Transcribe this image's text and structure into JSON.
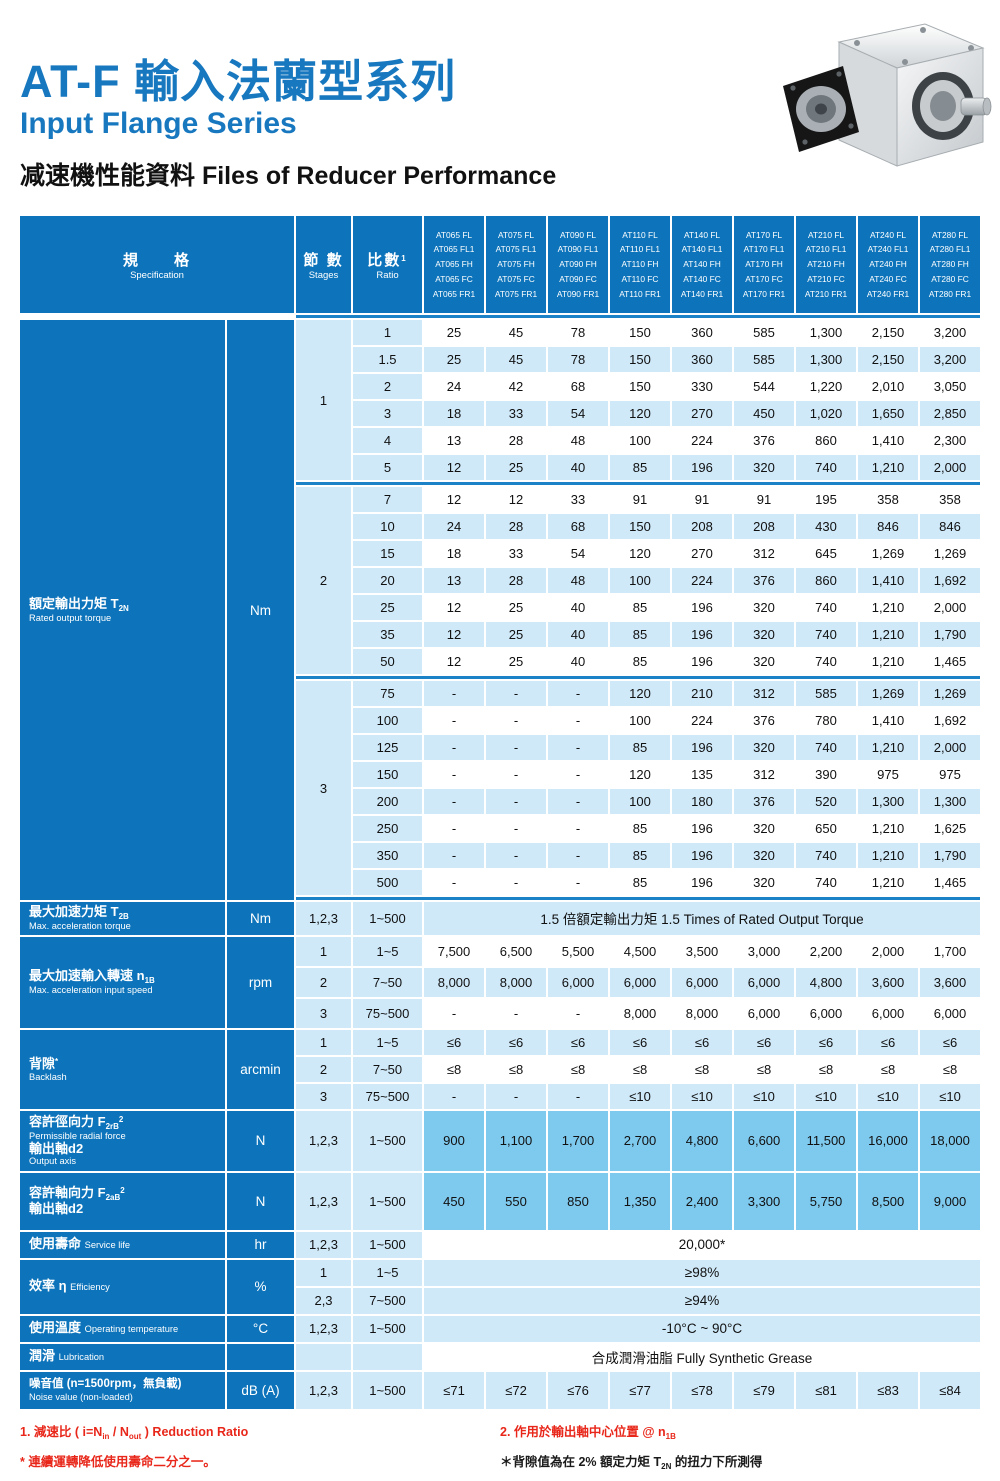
{
  "header": {
    "title_zh": "AT-F 輸入法蘭型系列",
    "title_en": "Input Flange Series",
    "subtitle": "减速機性能資料 Files of Reducer Performance",
    "product_illustration": "right-angle-gear-reducer"
  },
  "colors": {
    "header_blue": "#0d74bb",
    "light_blue": "#cfe9f9",
    "sky_blue": "#7ec9ee",
    "separator_blue": "#1b82c8",
    "title_blue": "#1878bf",
    "footnote_red": "#e8271a"
  },
  "table": {
    "head": {
      "spec": [
        {
          "t": "規　　格"
        },
        {
          "t": "Specification",
          "small": true
        }
      ],
      "stages": [
        {
          "t": "節 數"
        },
        {
          "t": "Stages",
          "small": true
        }
      ],
      "ratio": [
        {
          "t": "比數",
          "sup": "1"
        },
        {
          "t": "Ratio",
          "small": true
        }
      ],
      "models": [
        [
          "AT065 FL",
          "AT065 FL1",
          "AT065 FH",
          "AT065 FC",
          "AT065 FR1"
        ],
        [
          "AT075 FL",
          "AT075 FL1",
          "AT075 FH",
          "AT075 FC",
          "AT075 FR1"
        ],
        [
          "AT090 FL",
          "AT090 FL1",
          "AT090 FH",
          "AT090 FC",
          "AT090 FR1"
        ],
        [
          "AT110 FL",
          "AT110 FL1",
          "AT110 FH",
          "AT110 FC",
          "AT110 FR1"
        ],
        [
          "AT140 FL",
          "AT140 FL1",
          "AT140 FH",
          "AT140 FC",
          "AT140 FR1"
        ],
        [
          "AT170 FL",
          "AT170 FL1",
          "AT170 FH",
          "AT170 FC",
          "AT170 FR1"
        ],
        [
          "AT210 FL",
          "AT210 FL1",
          "AT210 FH",
          "AT210 FC",
          "AT210 FR1"
        ],
        [
          "AT240 FL",
          "AT240 FL1",
          "AT240 FH",
          "AT240 FC",
          "AT240 FR1"
        ],
        [
          "AT280 FL",
          "AT280 FL1",
          "AT280 FH",
          "AT280 FC",
          "AT280 FR1"
        ]
      ]
    },
    "torque": {
      "label": [
        {
          "t": "額定輸出力矩 T",
          "sub": "2N"
        },
        {
          "t": "Rated output torque",
          "small": true
        }
      ],
      "unit": "Nm",
      "groups": [
        {
          "stage": "1",
          "rows": [
            {
              "ratio": "1",
              "values": [
                "25",
                "45",
                "78",
                "150",
                "360",
                "585",
                "1,300",
                "2,150",
                "3,200"
              ]
            },
            {
              "ratio": "1.5",
              "values": [
                "25",
                "45",
                "78",
                "150",
                "360",
                "585",
                "1,300",
                "2,150",
                "3,200"
              ]
            },
            {
              "ratio": "2",
              "values": [
                "24",
                "42",
                "68",
                "150",
                "330",
                "544",
                "1,220",
                "2,010",
                "3,050"
              ]
            },
            {
              "ratio": "3",
              "values": [
                "18",
                "33",
                "54",
                "120",
                "270",
                "450",
                "1,020",
                "1,650",
                "2,850"
              ]
            },
            {
              "ratio": "4",
              "values": [
                "13",
                "28",
                "48",
                "100",
                "224",
                "376",
                "860",
                "1,410",
                "2,300"
              ]
            },
            {
              "ratio": "5",
              "values": [
                "12",
                "25",
                "40",
                "85",
                "196",
                "320",
                "740",
                "1,210",
                "2,000"
              ]
            }
          ]
        },
        {
          "stage": "2",
          "rows": [
            {
              "ratio": "7",
              "values": [
                "12",
                "12",
                "33",
                "91",
                "91",
                "91",
                "195",
                "358",
                "358"
              ]
            },
            {
              "ratio": "10",
              "values": [
                "24",
                "28",
                "68",
                "150",
                "208",
                "208",
                "430",
                "846",
                "846"
              ]
            },
            {
              "ratio": "15",
              "values": [
                "18",
                "33",
                "54",
                "120",
                "270",
                "312",
                "645",
                "1,269",
                "1,269"
              ]
            },
            {
              "ratio": "20",
              "values": [
                "13",
                "28",
                "48",
                "100",
                "224",
                "376",
                "860",
                "1,410",
                "1,692"
              ]
            },
            {
              "ratio": "25",
              "values": [
                "12",
                "25",
                "40",
                "85",
                "196",
                "320",
                "740",
                "1,210",
                "2,000"
              ]
            },
            {
              "ratio": "35",
              "values": [
                "12",
                "25",
                "40",
                "85",
                "196",
                "320",
                "740",
                "1,210",
                "1,790"
              ]
            },
            {
              "ratio": "50",
              "values": [
                "12",
                "25",
                "40",
                "85",
                "196",
                "320",
                "740",
                "1,210",
                "1,465"
              ]
            }
          ]
        },
        {
          "stage": "3",
          "rows": [
            {
              "ratio": "75",
              "values": [
                "-",
                "-",
                "-",
                "120",
                "210",
                "312",
                "585",
                "1,269",
                "1,269"
              ]
            },
            {
              "ratio": "100",
              "values": [
                "-",
                "-",
                "-",
                "100",
                "224",
                "376",
                "780",
                "1,410",
                "1,692"
              ]
            },
            {
              "ratio": "125",
              "values": [
                "-",
                "-",
                "-",
                "85",
                "196",
                "320",
                "740",
                "1,210",
                "2,000"
              ]
            },
            {
              "ratio": "150",
              "values": [
                "-",
                "-",
                "-",
                "120",
                "135",
                "312",
                "390",
                "975",
                "975"
              ]
            },
            {
              "ratio": "200",
              "values": [
                "-",
                "-",
                "-",
                "100",
                "180",
                "376",
                "520",
                "1,300",
                "1,300"
              ]
            },
            {
              "ratio": "250",
              "values": [
                "-",
                "-",
                "-",
                "85",
                "196",
                "320",
                "650",
                "1,210",
                "1,625"
              ]
            },
            {
              "ratio": "350",
              "values": [
                "-",
                "-",
                "-",
                "85",
                "196",
                "320",
                "740",
                "1,210",
                "1,790"
              ]
            },
            {
              "ratio": "500",
              "values": [
                "-",
                "-",
                "-",
                "85",
                "196",
                "320",
                "740",
                "1,210",
                "1,465"
              ]
            }
          ]
        }
      ]
    },
    "accel_torque": {
      "label": [
        {
          "t": "最大加速力矩 T",
          "sub": "2B"
        },
        {
          "t": "Max. acceleration torque",
          "small": true
        }
      ],
      "unit": "Nm",
      "stages": "1,2,3",
      "ratio": "1~500",
      "value": "1.5 倍額定輸出力矩 1.5 Times of Rated Output Torque"
    },
    "accel_speed": {
      "label": [
        {
          "t": "最大加速輸入轉速 n",
          "sub": "1B"
        },
        {
          "t": "Max. acceleration input speed",
          "small": true
        }
      ],
      "unit": "rpm",
      "rows": [
        {
          "stages": "1",
          "ratio": "1~5",
          "values": [
            "7,500",
            "6,500",
            "5,500",
            "4,500",
            "3,500",
            "3,000",
            "2,200",
            "2,000",
            "1,700"
          ]
        },
        {
          "stages": "2",
          "ratio": "7~50",
          "values": [
            "8,000",
            "8,000",
            "6,000",
            "6,000",
            "6,000",
            "6,000",
            "4,800",
            "3,600",
            "3,600"
          ]
        },
        {
          "stages": "3",
          "ratio": "75~500",
          "values": [
            "-",
            "-",
            "-",
            "8,000",
            "8,000",
            "6,000",
            "6,000",
            "6,000",
            "6,000"
          ]
        }
      ]
    },
    "backlash": {
      "label": [
        {
          "t": "背隙",
          "sup": "*"
        },
        {
          "t": "Backlash",
          "small": true
        }
      ],
      "unit": "arcmin",
      "rows": [
        {
          "stages": "1",
          "ratio": "1~5",
          "values": [
            "≤6",
            "≤6",
            "≤6",
            "≤6",
            "≤6",
            "≤6",
            "≤6",
            "≤6",
            "≤6"
          ]
        },
        {
          "stages": "2",
          "ratio": "7~50",
          "values": [
            "≤8",
            "≤8",
            "≤8",
            "≤8",
            "≤8",
            "≤8",
            "≤8",
            "≤8",
            "≤8"
          ]
        },
        {
          "stages": "3",
          "ratio": "75~500",
          "values": [
            "-",
            "-",
            "-",
            "≤10",
            "≤10",
            "≤10",
            "≤10",
            "≤10",
            "≤10"
          ]
        }
      ]
    },
    "radial_force": {
      "label": [
        {
          "t": "容許徑向力 F",
          "sub": "2rB",
          "sup": "2"
        },
        {
          "t": "Permissible radial force",
          "small": true
        },
        {
          "t": "輸出軸d2"
        },
        {
          "t": "Output axis",
          "small": true
        }
      ],
      "unit": "N",
      "stages": "1,2,3",
      "ratio": "1~500",
      "values": [
        "900",
        "1,100",
        "1,700",
        "2,700",
        "4,800",
        "6,600",
        "11,500",
        "16,000",
        "18,000"
      ]
    },
    "axial_force": {
      "label": [
        {
          "t": "容許軸向力 F",
          "sub": "2aB",
          "sup": "2"
        },
        {
          "t": "輸出軸d2"
        }
      ],
      "unit": "N",
      "stages": "1,2,3",
      "ratio": "1~500",
      "values": [
        "450",
        "550",
        "850",
        "1,350",
        "2,400",
        "3,300",
        "5,750",
        "8,500",
        "9,000"
      ]
    },
    "service_life": {
      "label": [
        {
          "t": "使用壽命 ",
          "tail": "Service life"
        }
      ],
      "unit": "hr",
      "stages": "1,2,3",
      "ratio": "1~500",
      "value": "20,000*"
    },
    "efficiency": {
      "label": [
        {
          "t": "效率 η ",
          "tail": "Efficiency"
        }
      ],
      "unit": "%",
      "rows": [
        {
          "stages": "1",
          "ratio": "1~5",
          "value": "≥98%"
        },
        {
          "stages": "2,3",
          "ratio": "7~500",
          "value": "≥94%"
        }
      ]
    },
    "temperature": {
      "label": [
        {
          "t": "使用溫度 ",
          "tail": "Operating temperature"
        }
      ],
      "unit": "°C",
      "stages": "1,2,3",
      "ratio": "1~500",
      "value": "-10°C ~ 90°C"
    },
    "lubrication": {
      "label": [
        {
          "t": "潤滑 ",
          "tail": "Lubrication"
        }
      ],
      "unit": "",
      "stages": "",
      "ratio": "",
      "value": "合成潤滑油脂 Fully Synthetic Grease"
    },
    "noise": {
      "label": [
        {
          "t": "噪音值 (n=1500rpm，無負載)"
        },
        {
          "t": "Noise value (non-loaded)",
          "small": true
        }
      ],
      "unit": "dB (A)",
      "stages": "1,2,3",
      "ratio": "1~500",
      "values": [
        "≤71",
        "≤72",
        "≤76",
        "≤77",
        "≤78",
        "≤79",
        "≤81",
        "≤83",
        "≤84"
      ]
    }
  },
  "footnotes": {
    "left": [
      {
        "color": "red",
        "segs": [
          {
            "t": "1. 減速比 ( i=N"
          },
          {
            "sub": "in"
          },
          {
            "t": " / N"
          },
          {
            "sub": "out"
          },
          {
            "t": " ) Reduction Ratio"
          }
        ]
      },
      {
        "color": "red",
        "segs": [
          {
            "t": "* 連續運轉降低使用壽命二分之一。"
          }
        ]
      }
    ],
    "right": [
      {
        "color": "red",
        "segs": [
          {
            "t": "2. 作用於輸出軸中心位置 @ n"
          },
          {
            "sub": "1B"
          }
        ]
      },
      {
        "color": "blk",
        "segs": [
          {
            "t": "＊背隙值為在 2% 額定力矩 T"
          },
          {
            "sub": "2N"
          },
          {
            "t": " 的扭力下所測得"
          }
        ]
      }
    ]
  }
}
